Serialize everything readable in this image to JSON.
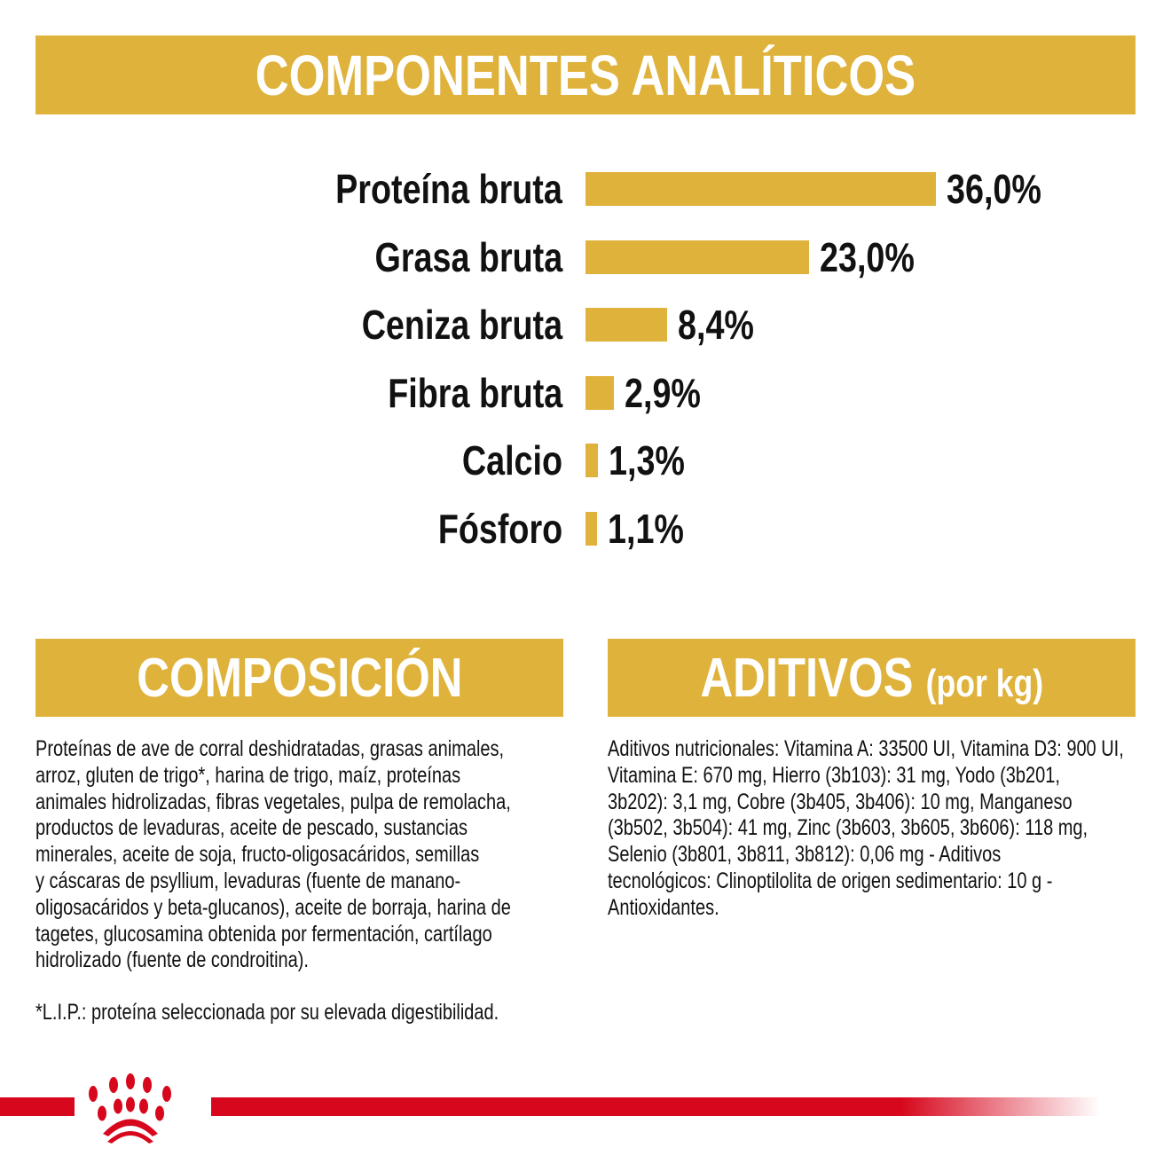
{
  "header": {
    "title": "COMPONENTES ANALÍTICOS"
  },
  "chart_data": {
    "type": "bar",
    "orientation": "horizontal",
    "categories": [
      "Proteína bruta",
      "Grasa bruta",
      "Ceniza bruta",
      "Fibra bruta",
      "Calcio",
      "Fósforo"
    ],
    "values": [
      36.0,
      23.0,
      8.4,
      2.9,
      1.3,
      1.1
    ],
    "value_labels": [
      "36,0%",
      "23,0%",
      "8,4%",
      "2,9%",
      "1,3%",
      "1,1%"
    ],
    "unit": "%",
    "bar_color": "#dfb23b",
    "grid": false
  },
  "composition": {
    "title": "COMPOSICIÓN",
    "lines": [
      "Proteínas de ave de corral deshidratadas, grasas animales,",
      "arroz, gluten de trigo*, harina de trigo, maíz, proteínas",
      "animales hidrolizadas, fibras vegetales, pulpa de remolacha,",
      "productos de levaduras, aceite de pescado, sustancias",
      "minerales, aceite de soja, fructo-oligosacáridos, semillas",
      "y cáscaras de psyllium, levaduras (fuente de manano-",
      "oligosacáridos y beta-glucanos), aceite de borraja, harina de",
      "tagetes, glucosamina obtenida por fermentación, cartílago",
      "hidrolizado (fuente de condroitina)."
    ],
    "footnote": "*L.I.P.: proteína seleccionada por su elevada digestibilidad."
  },
  "additives": {
    "title": "ADITIVOS",
    "title_suffix": "(por kg)",
    "lines": [
      "Aditivos nutricionales: Vitamina A: 33500 UI, Vitamina D3: 900 UI,",
      "Vitamina E: 670 mg, Hierro (3b103): 31 mg, Yodo (3b201,",
      "3b202): 3,1 mg, Cobre (3b405, 3b406): 10 mg, Manganeso",
      "(3b502, 3b504): 41 mg, Zinc (3b603, 3b605, 3b606): 118 mg,",
      "Selenio (3b801, 3b811, 3b812): 0,06 mg - Aditivos",
      "tecnológicos: Clinoptilolita de origen sedimentario: 10 g -",
      "Antioxidantes."
    ]
  },
  "colors": {
    "gold": "#dfb23b",
    "brand_red": "#d7081e"
  },
  "logo": {
    "icon": "royal-canin-crown-logo"
  }
}
